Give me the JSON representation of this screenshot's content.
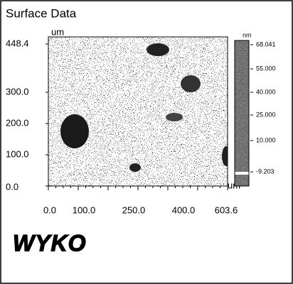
{
  "title": "Surface Data",
  "image": {
    "y_unit": "um",
    "y_labels": [
      "448.4",
      "300.0",
      "200.0",
      "100.0",
      "0.0"
    ],
    "x_unit": "um",
    "x_labels": [
      "0.0",
      "100.0",
      "250.0",
      "400.0",
      "603.6"
    ]
  },
  "colorbar": {
    "unit": "nm",
    "labels": [
      "68.041",
      "55.000",
      "40.000",
      "25.000",
      "10.000",
      "-9.203"
    ]
  },
  "logo": "WYKO"
}
